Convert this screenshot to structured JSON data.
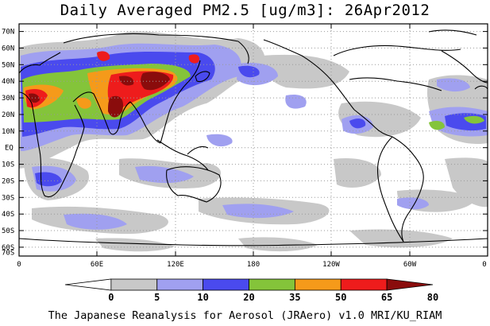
{
  "title": "Daily Averaged PM2.5 [ug/m3]: 26Apr2012",
  "footer": "The Japanese Reanalysis for Aerosol (JRAero) v1.0 MRI/KU_RIAM",
  "map": {
    "lat_labels": [
      "70N",
      "60N",
      "50N",
      "40N",
      "30N",
      "20N",
      "10N",
      "EQ",
      "10S",
      "20S",
      "30S",
      "40S",
      "50S",
      "60S",
      "70S"
    ],
    "lon_labels": [
      "0",
      "60E",
      "120E",
      "180",
      "120W",
      "60W",
      "0"
    ]
  },
  "colorbar": {
    "levels": [
      "0",
      "5",
      "10",
      "20",
      "35",
      "50",
      "65",
      "80"
    ],
    "colors": [
      "#ffffff",
      "#c8c8c8",
      "#a0a0f0",
      "#4a4aee",
      "#84c43a",
      "#f59a1a",
      "#ee1c1c",
      "#8a0c0c"
    ]
  }
}
